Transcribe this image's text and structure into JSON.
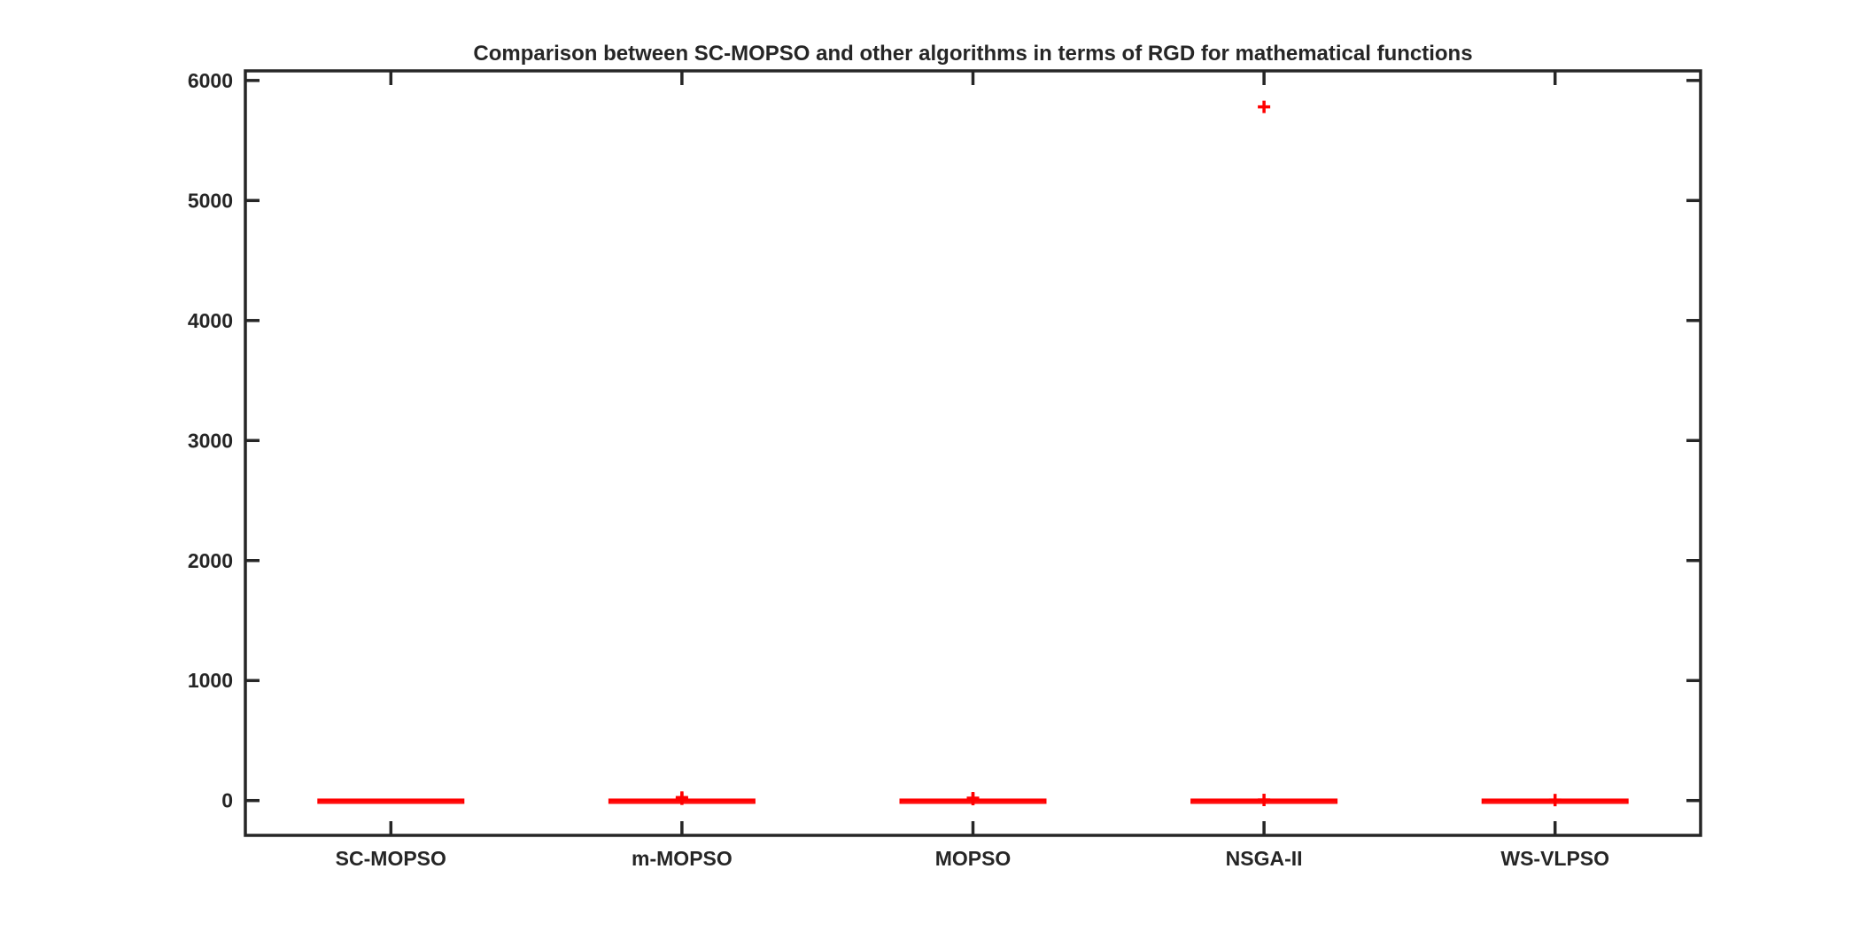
{
  "chart_data": {
    "type": "boxplot",
    "title": "Comparison between SC-MOPSO and other algorithms in terms of RGD for mathematical functions",
    "xlabel": "",
    "ylabel": "",
    "categories": [
      "SC-MOPSO",
      "m-MOPSO",
      "MOPSO",
      "NSGA-II",
      "WS-VLPSO"
    ],
    "ylim": [
      -290,
      6080
    ],
    "yticks": [
      0,
      1000,
      2000,
      3000,
      4000,
      5000,
      6000
    ],
    "box_color": "#ff0000",
    "axis_color": "#262626",
    "boxes": [
      {
        "category": "SC-MOPSO",
        "median": 0.5,
        "q1": 0,
        "q3": 2,
        "outliers": []
      },
      {
        "category": "m-MOPSO",
        "median": 0.5,
        "q1": 0,
        "q3": 2,
        "outliers": [
          15,
          25
        ]
      },
      {
        "category": "MOPSO",
        "median": 0.5,
        "q1": 0,
        "q3": 2,
        "outliers": [
          12,
          20
        ]
      },
      {
        "category": "NSGA-II",
        "median": 0.5,
        "q1": 0,
        "q3": 2,
        "outliers": [
          5,
          5780
        ]
      },
      {
        "category": "WS-VLPSO",
        "median": 0.5,
        "q1": 0,
        "q3": 2,
        "outliers": [
          4
        ]
      }
    ],
    "grid": false,
    "legend": "none"
  }
}
